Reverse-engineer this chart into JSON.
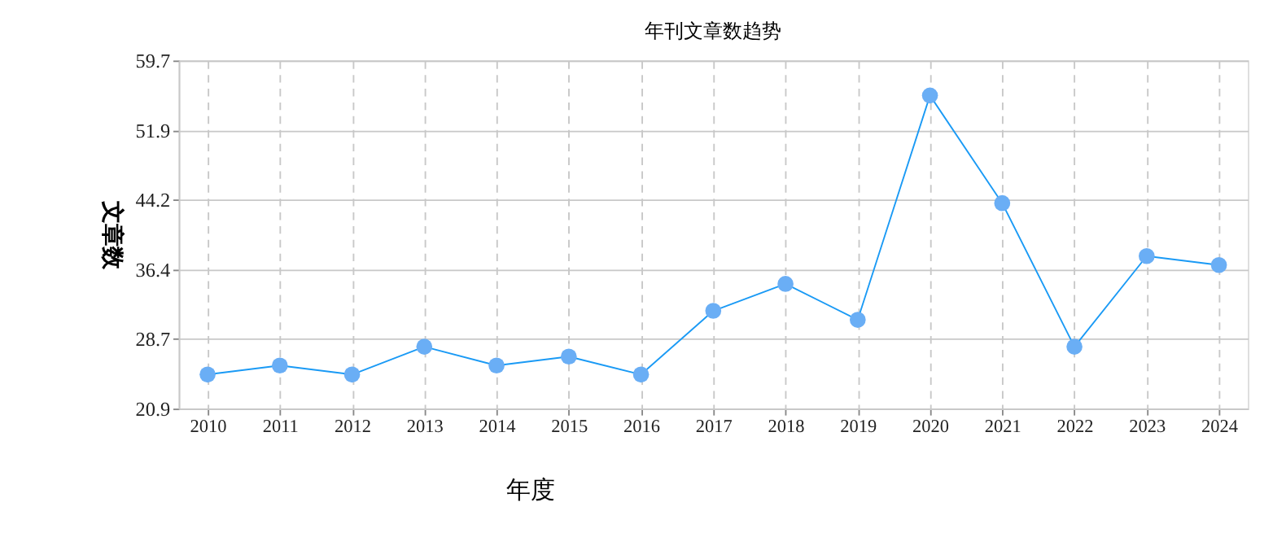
{
  "chart_data": {
    "type": "line",
    "title": "年刊文章数趋势",
    "xlabel": "年度",
    "ylabel": "文章数",
    "categories": [
      "2010",
      "2011",
      "2012",
      "2013",
      "2014",
      "2015",
      "2016",
      "2017",
      "2018",
      "2019",
      "2020",
      "2021",
      "2022",
      "2023",
      "2024"
    ],
    "series": [
      {
        "color": "#1a9af5",
        "values": [
          24.7,
          25.7,
          24.7,
          27.8,
          25.7,
          26.7,
          24.7,
          31.8,
          34.8,
          30.8,
          55.8,
          43.8,
          27.8,
          37.9,
          36.9
        ]
      }
    ],
    "ylim": [
      20.9,
      59.7
    ],
    "yticks": [
      20.9,
      28.7,
      36.4,
      44.2,
      51.9,
      59.7
    ],
    "grid": true,
    "marker": "circle",
    "line_style": "solid"
  }
}
